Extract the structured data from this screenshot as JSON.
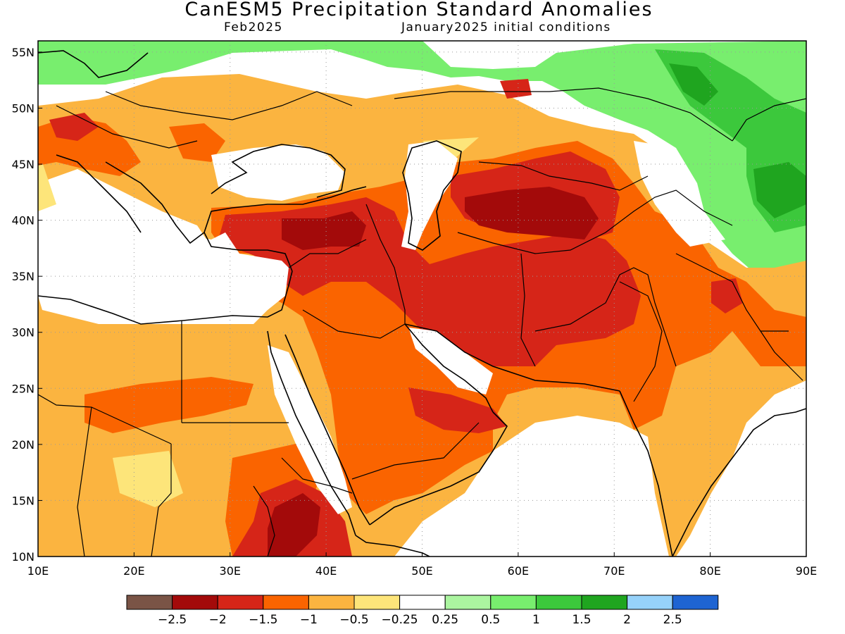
{
  "header": {
    "title": "CanESM5 Precipitation Standard Anomalies",
    "valid_month": "Feb2025",
    "init": "January2025 initial conditions"
  },
  "axes": {
    "lon_range": [
      10,
      90
    ],
    "lat_range": [
      10,
      56
    ],
    "lon_ticks": [
      "10E",
      "20E",
      "30E",
      "40E",
      "50E",
      "60E",
      "70E",
      "80E",
      "90E"
    ],
    "lat_ticks": [
      "10N",
      "15N",
      "20N",
      "25N",
      "30N",
      "35N",
      "40N",
      "45N",
      "50N",
      "55N"
    ],
    "grid": "dotted"
  },
  "colorbar": {
    "colors": [
      "#7a5446",
      "#a30a0a",
      "#d62518",
      "#fa6400",
      "#fbb440",
      "#fde57a",
      "#ffffff",
      "#abf5a0",
      "#78ee6e",
      "#3cc83c",
      "#1fa51f",
      "#96d2fa",
      "#1e64d2"
    ],
    "labels": [
      "−2.5",
      "−2",
      "−1.5",
      "−1",
      "−0.5",
      "−0.25",
      "0.25",
      "0.5",
      "1",
      "1.5",
      "2",
      "2.5"
    ]
  },
  "anomaly_regions": [
    {
      "level": 4,
      "lon": 24,
      "lat": 22,
      "rx": 15,
      "ry": 11
    },
    {
      "level": 3,
      "lon": 44,
      "lat": 24,
      "rx": 7,
      "ry": 6
    },
    {
      "level": 2,
      "lon": 42,
      "lat": 38.5,
      "rx": 12,
      "ry": 3.5
    },
    {
      "level": 1,
      "lon": 41,
      "lat": 39,
      "rx": 4,
      "ry": 2
    },
    {
      "level": 2,
      "lon": 40.5,
      "lat": 13,
      "rx": 6,
      "ry": 5
    },
    {
      "level": 2,
      "lon": 63,
      "lat": 36,
      "rx": 12,
      "ry": 7
    },
    {
      "level": 1,
      "lon": 66,
      "lat": 39.5,
      "rx": 5,
      "ry": 3
    },
    {
      "level": 3,
      "lon": 74,
      "lat": 28,
      "rx": 6,
      "ry": 6
    },
    {
      "level": 10,
      "lon": 86,
      "lat": 42,
      "rx": 5,
      "ry": 6
    }
  ]
}
